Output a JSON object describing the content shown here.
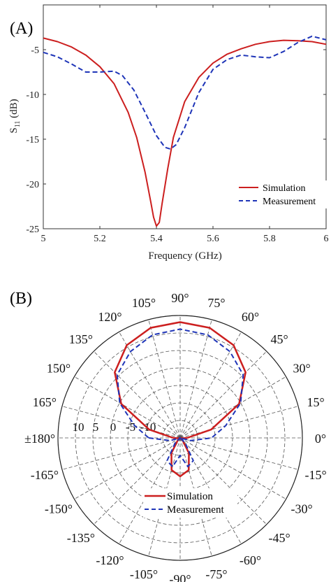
{
  "chart_data": [
    {
      "type": "line",
      "panel_label": "(A)",
      "xlabel": "Frequency (GHz)",
      "ylabel": "S11 (dB)",
      "ylabel_main": "S",
      "ylabel_sub": "11",
      "ylabel_unit": " (dB)",
      "xlim": [
        5,
        6
      ],
      "ylim": [
        -25,
        0
      ],
      "xticks": [
        "5",
        "5.2",
        "5.4",
        "5.6",
        "5.8",
        "6"
      ],
      "yticks": [
        "-5",
        "-10",
        "-15",
        "-20",
        "-25"
      ],
      "grid": false,
      "legend_position": "lower-right",
      "series": [
        {
          "name": "Simulation",
          "color": "#cc1f1f",
          "dash": "solid",
          "x": [
            5.0,
            5.05,
            5.1,
            5.15,
            5.2,
            5.25,
            5.3,
            5.33,
            5.36,
            5.38,
            5.39,
            5.4,
            5.41,
            5.42,
            5.44,
            5.46,
            5.5,
            5.55,
            5.6,
            5.65,
            5.7,
            5.75,
            5.8,
            5.85,
            5.9,
            5.95,
            6.0
          ],
          "y": [
            -3.7,
            -4.1,
            -4.7,
            -5.6,
            -6.9,
            -8.8,
            -12.0,
            -14.8,
            -18.7,
            -22.0,
            -23.7,
            -24.7,
            -24.3,
            -22.2,
            -18.3,
            -14.8,
            -10.8,
            -8.1,
            -6.5,
            -5.5,
            -4.9,
            -4.4,
            -4.1,
            -3.95,
            -4.0,
            -4.1,
            -4.4
          ]
        },
        {
          "name": "Measurement",
          "color": "#1f35b8",
          "dash": "dashed",
          "x": [
            5.0,
            5.05,
            5.1,
            5.15,
            5.2,
            5.25,
            5.28,
            5.32,
            5.36,
            5.4,
            5.43,
            5.45,
            5.47,
            5.5,
            5.55,
            5.6,
            5.65,
            5.7,
            5.75,
            5.8,
            5.85,
            5.9,
            5.95,
            6.0
          ],
          "y": [
            -5.3,
            -5.8,
            -6.6,
            -7.5,
            -7.5,
            -7.4,
            -7.9,
            -9.5,
            -12.0,
            -14.6,
            -15.9,
            -16.1,
            -15.6,
            -13.7,
            -9.8,
            -7.2,
            -6.1,
            -5.6,
            -5.8,
            -5.9,
            -5.2,
            -4.2,
            -3.5,
            -3.9
          ]
        }
      ]
    },
    {
      "type": "polar",
      "panel_label": "(B)",
      "radial_range": [
        -20,
        15
      ],
      "radial_ticks": [
        {
          "value": 10,
          "label": "10"
        },
        {
          "value": 5,
          "label": "5"
        },
        {
          "value": 0,
          "label": "0"
        },
        {
          "value": -5,
          "label": "-5"
        },
        {
          "value": -10,
          "label": "-10"
        }
      ],
      "angle_labels": [
        "0°",
        "15°",
        "30°",
        "45°",
        "60°",
        "75°",
        "90°",
        "105°",
        "120°",
        "135°",
        "150°",
        "165°",
        "±180°",
        "-165°",
        "-150°",
        "-135°",
        "-120°",
        "-105°",
        "-90°",
        "-75°",
        "-60°",
        "-45°",
        "-30°",
        "-15°"
      ],
      "grid": true,
      "legend_position": "bottom-center",
      "series": [
        {
          "name": "Simulation",
          "color": "#cc1f1f",
          "dash": "solid",
          "theta": [
            -180,
            -165,
            -150,
            -135,
            -120,
            -105,
            -90,
            -75,
            -60,
            -45,
            -30,
            -15,
            0,
            15,
            30,
            45,
            60,
            75,
            90,
            105,
            120,
            135,
            150,
            165,
            180
          ],
          "r": [
            -18,
            -19.5,
            -20,
            -19,
            -15,
            -10.5,
            -9.0,
            -10.5,
            -15,
            -19,
            -20,
            -19.5,
            -18,
            -10.8,
            -0.5,
            6.5,
            10.6,
            12.6,
            13.1,
            12.6,
            10.6,
            6.5,
            -0.5,
            -10.8,
            -18
          ]
        },
        {
          "name": "Measurement",
          "color": "#1f35b8",
          "dash": "dashed",
          "theta": [
            -180,
            -165,
            -150,
            -135,
            -120,
            -105,
            -90,
            -75,
            -60,
            -45,
            -30,
            -15,
            0,
            15,
            30,
            45,
            60,
            75,
            90,
            105,
            120,
            135,
            150,
            165,
            180
          ],
          "r": [
            -11,
            -17,
            -20,
            -18,
            -12.5,
            -11.5,
            -15,
            -11.5,
            -12.5,
            -18,
            -20,
            -17,
            -11,
            -6.5,
            0,
            5.5,
            8.5,
            10.5,
            11.1,
            10.5,
            8.5,
            5.5,
            0,
            -6.5,
            -11
          ]
        }
      ]
    }
  ]
}
